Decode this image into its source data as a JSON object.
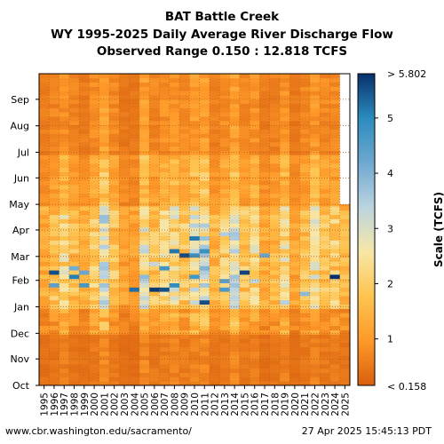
{
  "chart_data": {
    "type": "heatmap",
    "title": "BAT Battle Creek",
    "subtitle": "WY 1995-2025 Daily Average River Discharge Flow",
    "observed_range": "Observed Range 0.150 : 12.818 TCFS",
    "x_tick_labels": [
      "1995",
      "1996",
      "1997",
      "1998",
      "1999",
      "2000",
      "2001",
      "2002",
      "2003",
      "2004",
      "2005",
      "2006",
      "2007",
      "2008",
      "2009",
      "2010",
      "2011",
      "2012",
      "2013",
      "2014",
      "2015",
      "2016",
      "2017",
      "2018",
      "2019",
      "2020",
      "2021",
      "2022",
      "2023",
      "2024",
      "2025"
    ],
    "y_tick_labels": [
      "Oct",
      "Nov",
      "Dec",
      "Jan",
      "Feb",
      "Mar",
      "Apr",
      "May",
      "Jun",
      "Jul",
      "Aug",
      "Sep"
    ],
    "colorbar": {
      "label": "Scale (TCFS)",
      "ticks": [
        1,
        2,
        3,
        4,
        5
      ],
      "top_label": "> 5.802",
      "bottom_label": "< 0.158",
      "range": [
        0.158,
        5.802
      ],
      "colors": [
        "#d95f0e",
        "#fe9929",
        "#fec44f",
        "#f7e7a8",
        "#bcd4e0",
        "#6fa8d0",
        "#2b8cbe",
        "#08306b"
      ]
    },
    "missing_data": "2025 data ends at end of April",
    "grid": true
  },
  "footer": {
    "left": "www.cbr.washington.edu/sacramento/",
    "right": "27 Apr 2025 15:45:13 PDT"
  }
}
